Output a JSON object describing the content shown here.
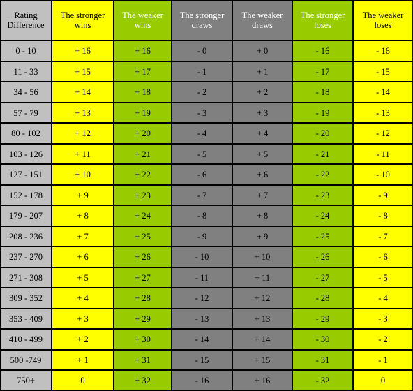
{
  "columns": [
    {
      "label": "Rating Difference",
      "color": "#c0c0c0"
    },
    {
      "label": "The stronger wins",
      "color": "#ffff00"
    },
    {
      "label": "The weaker wins",
      "color": "#99cc00"
    },
    {
      "label": "The stronger draws",
      "color": "#808080"
    },
    {
      "label": "The weaker draws",
      "color": "#808080"
    },
    {
      "label": "The stronger loses",
      "color": "#99cc00"
    },
    {
      "label": "The weaker loses",
      "color": "#ffff00"
    }
  ],
  "rows": [
    [
      "0  - 10",
      "+ 16",
      "+ 16",
      "- 0",
      "+ 0",
      "- 16",
      "- 16"
    ],
    [
      "11  - 33",
      "+ 15",
      "+ 17",
      "- 1",
      "+ 1",
      "- 17",
      "- 15"
    ],
    [
      "34  - 56",
      "+ 14",
      "+ 18",
      "- 2",
      "+ 2",
      "- 18",
      "- 14"
    ],
    [
      "57  - 79",
      "+ 13",
      "+ 19",
      "- 3",
      "+ 3",
      "- 19",
      "- 13"
    ],
    [
      "80  - 102",
      "+ 12",
      "+ 20",
      "- 4",
      "+ 4",
      "- 20",
      "- 12"
    ],
    [
      "103  - 126",
      "+ 11",
      "+ 21",
      "- 5",
      "+ 5",
      "- 21",
      "- 11"
    ],
    [
      "127  - 151",
      "+ 10",
      "+ 22",
      "- 6",
      "+ 6",
      "- 22",
      "- 10"
    ],
    [
      "152  - 178",
      "+ 9",
      "+ 23",
      "- 7",
      "+ 7",
      "- 23",
      "- 9"
    ],
    [
      "179  - 207",
      "+ 8",
      "+ 24",
      "- 8",
      "+ 8",
      "- 24",
      "- 8"
    ],
    [
      "208 - 236",
      "+ 7",
      "+ 25",
      "- 9",
      "+ 9",
      "- 25",
      "- 7"
    ],
    [
      "237 - 270",
      "+ 6",
      "+ 26",
      "- 10",
      "+ 10",
      "- 26",
      "- 6"
    ],
    [
      "271 - 308",
      "+ 5",
      "+ 27",
      "- 11",
      "+ 11",
      "- 27",
      "- 5"
    ],
    [
      "309 - 352",
      "+ 4",
      "+ 28",
      "- 12",
      "+ 12",
      "- 28",
      "- 4"
    ],
    [
      "353 - 409",
      "+ 3",
      "+ 29",
      "- 13",
      "+ 13",
      "- 29",
      "- 3"
    ],
    [
      "410 - 499",
      "+ 2",
      "+ 30",
      "- 14",
      "+ 14",
      "- 30",
      "- 2"
    ],
    [
      "500 -749",
      "+ 1",
      "+ 31",
      "- 15",
      "+ 15",
      "- 31",
      "- 1"
    ],
    [
      "750+",
      "0",
      "+ 32",
      "- 16",
      "+ 16",
      "- 32",
      "0"
    ]
  ]
}
